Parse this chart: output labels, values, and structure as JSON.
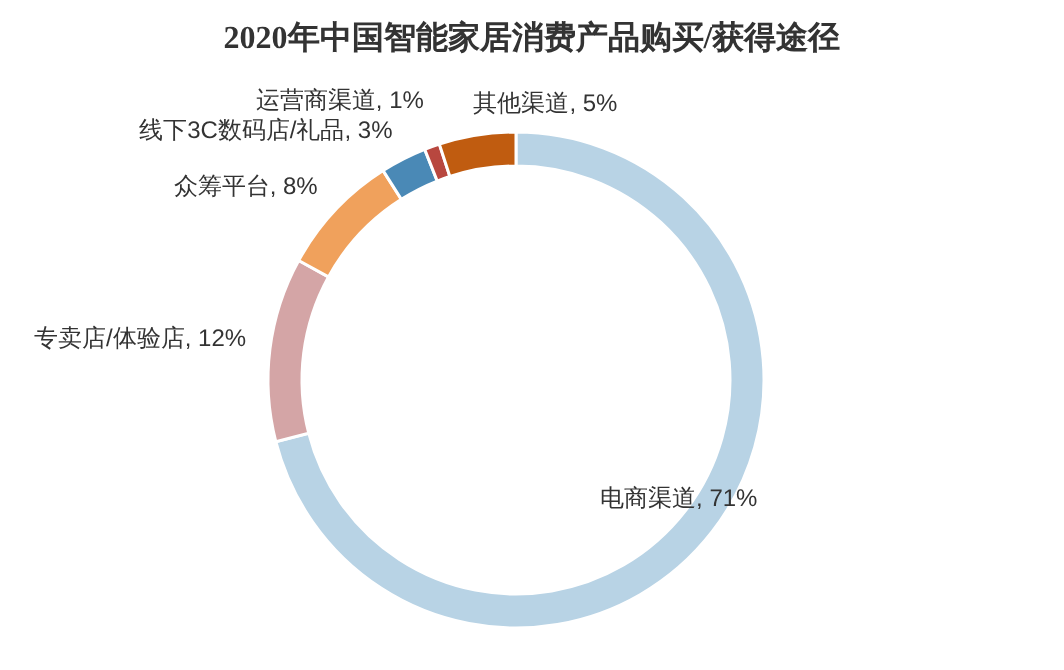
{
  "chart_data": {
    "type": "donut",
    "title": "2020年中国智能家居消费产品购买/获得途径",
    "categories": [
      "电商渠道",
      "专卖店/体验店",
      "众筹平台",
      "线下3C数码店/礼品",
      "运营商渠道",
      "其他渠道"
    ],
    "values": [
      71,
      12,
      8,
      3,
      1,
      5
    ],
    "value_labels": [
      "71%",
      "12%",
      "8%",
      "3%",
      "1%",
      "5%"
    ],
    "colors": [
      "#b8d3e5",
      "#d4a5a6",
      "#f0a15c",
      "#4a89b6",
      "#b8473f",
      "#c05c10"
    ]
  }
}
